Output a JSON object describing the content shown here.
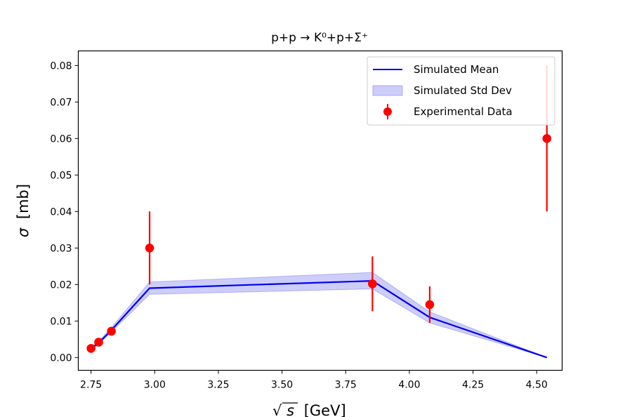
{
  "chart_data": {
    "type": "line",
    "title": "p+p → K⁰+p+Σ⁺",
    "xlabel_sqrt": "√",
    "xlabel_s": "s",
    "xlabel_rest": "[GeV]",
    "ylabel_sigma": "σ",
    "ylabel_rest": "[mb]",
    "xlim": [
      2.7,
      4.6
    ],
    "ylim": [
      -0.0035,
      0.084
    ],
    "xticks": [
      2.75,
      3.0,
      3.25,
      3.5,
      3.75,
      4.0,
      4.25,
      4.5
    ],
    "xtick_labels": [
      "2.75",
      "3.00",
      "3.25",
      "3.50",
      "3.75",
      "4.00",
      "4.25",
      "4.50"
    ],
    "yticks": [
      0.0,
      0.01,
      0.02,
      0.03,
      0.04,
      0.05,
      0.06,
      0.07,
      0.08
    ],
    "ytick_labels": [
      "0.00",
      "0.01",
      "0.02",
      "0.03",
      "0.04",
      "0.05",
      "0.06",
      "0.07",
      "0.08"
    ],
    "series": [
      {
        "name": "Simulated Mean",
        "kind": "line",
        "color": "#0000ee",
        "x": [
          2.75,
          2.78,
          2.83,
          2.98,
          3.855,
          4.08,
          4.54
        ],
        "y": [
          0.0025,
          0.004,
          0.0075,
          0.019,
          0.021,
          0.011,
          0.0
        ]
      },
      {
        "name": "Simulated Std Dev",
        "kind": "band",
        "color": "#7070ee",
        "x": [
          2.75,
          2.78,
          2.83,
          2.98,
          3.855,
          4.08,
          4.54
        ],
        "lower": [
          0.0022,
          0.0036,
          0.007,
          0.0173,
          0.0188,
          0.0095,
          0.0
        ],
        "upper": [
          0.0028,
          0.0045,
          0.0082,
          0.0207,
          0.0233,
          0.0125,
          0.0
        ]
      },
      {
        "name": "Experimental Data",
        "kind": "errorbar",
        "color": "#ff0000",
        "x": [
          2.75,
          2.78,
          2.83,
          2.98,
          3.855,
          4.08,
          4.54
        ],
        "y": [
          0.0025,
          0.0042,
          0.0072,
          0.03,
          0.0202,
          0.0145,
          0.06
        ],
        "yerr": [
          0.0003,
          0.0005,
          0.0006,
          0.01,
          0.0075,
          0.005,
          0.02
        ]
      }
    ],
    "legend": {
      "position": "upper-right",
      "entries": [
        "Simulated Mean",
        "Simulated Std Dev",
        "Experimental Data"
      ]
    }
  }
}
